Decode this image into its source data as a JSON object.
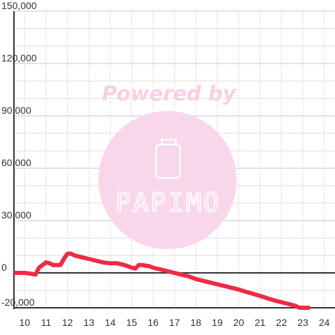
{
  "chart_data": {
    "type": "line",
    "title": "",
    "xlabel": "",
    "ylabel": "",
    "xlim": [
      9.5,
      24.5
    ],
    "ylim": [
      -20000,
      150000
    ],
    "x_ticks": [
      "10",
      "11",
      "12",
      "13",
      "14",
      "15",
      "16",
      "17",
      "18",
      "19",
      "20",
      "21",
      "22",
      "23",
      "24"
    ],
    "y_ticks": [
      "150,000",
      "120,000",
      "90,000",
      "60,000",
      "30,000",
      "0",
      "-20,000"
    ],
    "grid": true,
    "line_color": "#ee2b45",
    "watermark": {
      "text": "Powered by",
      "brand": "PAPIMO",
      "color": "#f9cfe5"
    },
    "series": [
      {
        "name": "",
        "points": [
          [
            9.5,
            0
          ],
          [
            10.0,
            0
          ],
          [
            10.33,
            -500
          ],
          [
            10.5,
            -1000
          ],
          [
            10.67,
            3000
          ],
          [
            10.83,
            4500
          ],
          [
            11.0,
            6000
          ],
          [
            11.17,
            5500
          ],
          [
            11.33,
            4500
          ],
          [
            11.5,
            4500
          ],
          [
            11.67,
            4500
          ],
          [
            11.83,
            8000
          ],
          [
            12.0,
            11000
          ],
          [
            12.17,
            11000
          ],
          [
            12.33,
            10000
          ],
          [
            12.5,
            9500
          ],
          [
            12.83,
            8500
          ],
          [
            13.0,
            8000
          ],
          [
            13.33,
            7000
          ],
          [
            13.67,
            6000
          ],
          [
            14.0,
            5500
          ],
          [
            14.33,
            5500
          ],
          [
            14.67,
            4500
          ],
          [
            15.0,
            3000
          ],
          [
            15.17,
            2500
          ],
          [
            15.33,
            4500
          ],
          [
            15.5,
            4500
          ],
          [
            15.83,
            3800
          ],
          [
            16.0,
            3000
          ],
          [
            16.33,
            2000
          ],
          [
            16.67,
            1000
          ],
          [
            17.0,
            0
          ],
          [
            17.33,
            -1000
          ],
          [
            17.67,
            -2000
          ],
          [
            18.0,
            -3500
          ],
          [
            18.33,
            -4500
          ],
          [
            18.67,
            -5500
          ],
          [
            19.0,
            -6500
          ],
          [
            19.33,
            -7500
          ],
          [
            19.67,
            -8500
          ],
          [
            20.0,
            -9500
          ],
          [
            20.33,
            -10800
          ],
          [
            20.67,
            -12000
          ],
          [
            21.0,
            -13200
          ],
          [
            21.33,
            -14500
          ],
          [
            21.67,
            -15800
          ],
          [
            22.0,
            -16800
          ],
          [
            22.33,
            -17800
          ],
          [
            22.67,
            -19000
          ],
          [
            22.83,
            -20000
          ],
          [
            23.0,
            -20000
          ],
          [
            23.33,
            -20000
          ]
        ]
      }
    ]
  }
}
